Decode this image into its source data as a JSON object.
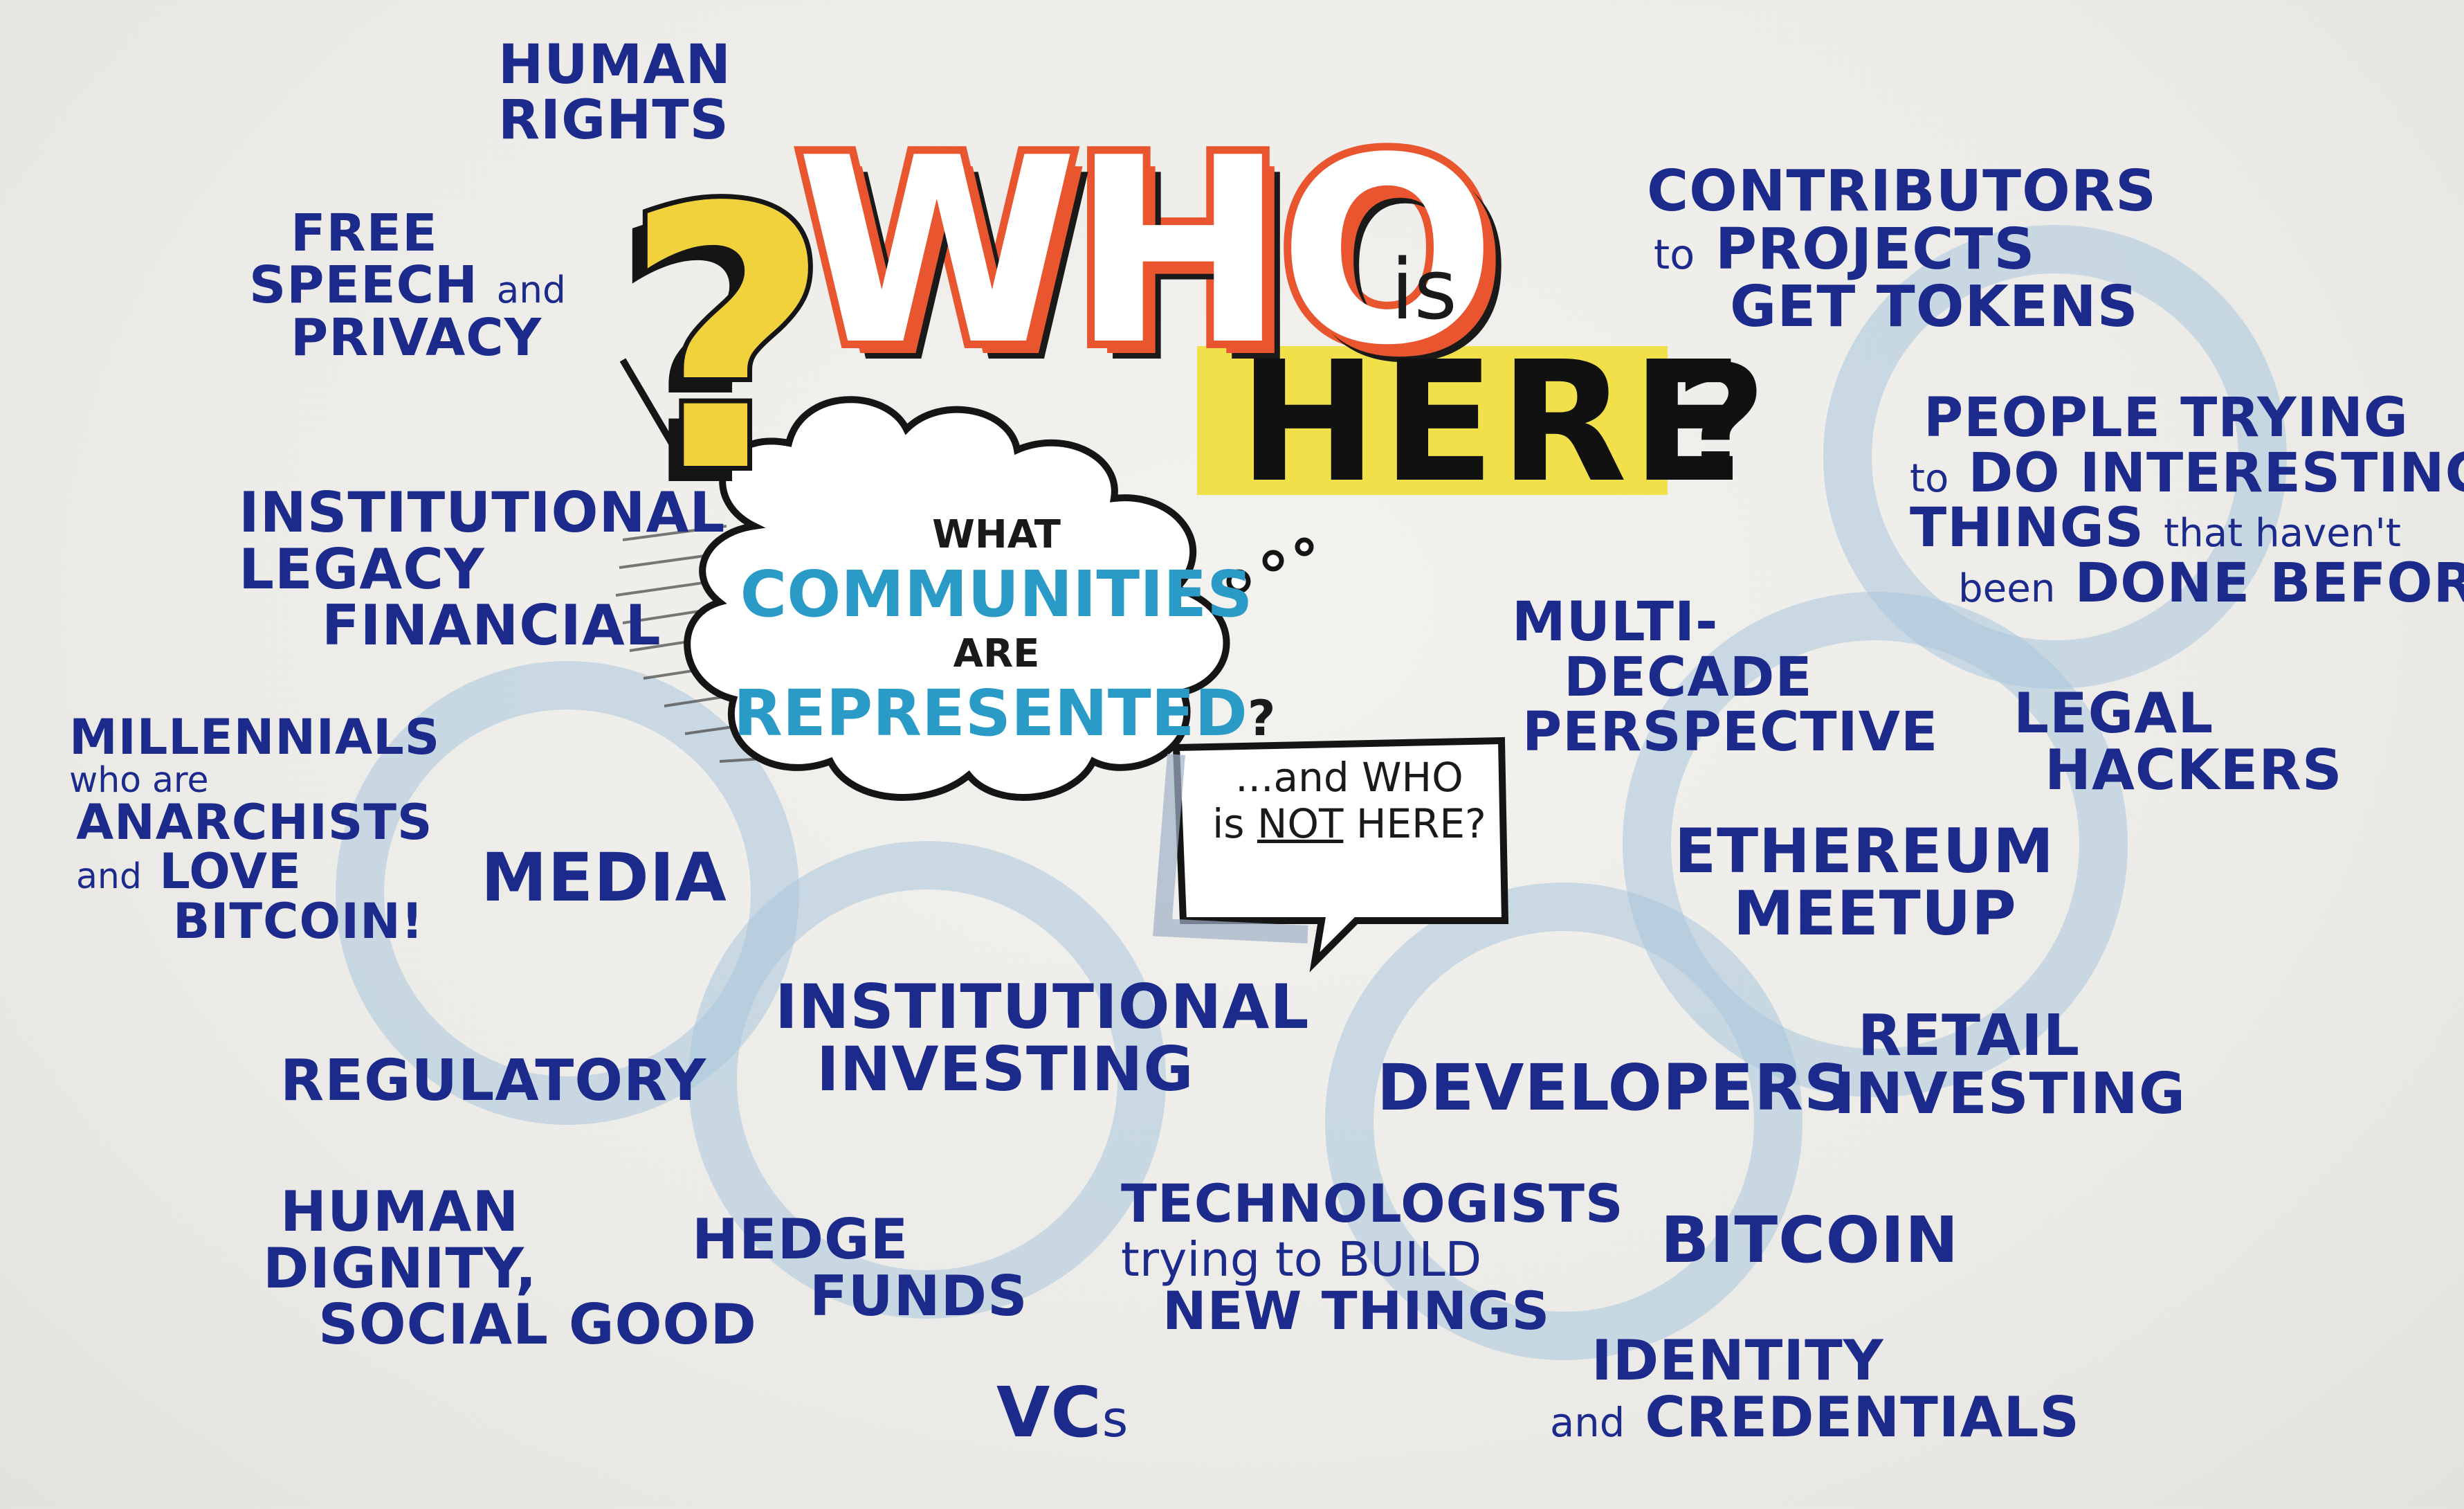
{
  "title": {
    "big_question_mark": "?",
    "who": "WHO",
    "is": "is",
    "here": "HERE",
    "question_mark": "?"
  },
  "cloud": {
    "line1": "WHAT",
    "line2": "COMMUNITIES",
    "line3": "ARE",
    "line4": "REPRESENTED",
    "dots": "...",
    "q": "?"
  },
  "bubble": {
    "line1": "...and WHO",
    "line2a": "is",
    "line2b": "NOT",
    "line2c": "HERE?"
  },
  "labels": {
    "human_rights": [
      "HUMAN",
      "RIGHTS"
    ],
    "free_speech": {
      "l1": "FREE",
      "l2a": "SPEECH",
      "l2b": "and",
      "l3": "PRIVACY"
    },
    "institutional_legacy": [
      "INSTITUTIONAL",
      "LEGACY",
      "FINANCIAL"
    ],
    "millennials": {
      "l1": "MILLENNIALS",
      "l2": "who are",
      "l3": "ANARCHISTS",
      "l4a": "and",
      "l4b": "LOVE",
      "l5": "BITCOIN!"
    },
    "media": "MEDIA",
    "regulatory": "REGULATORY",
    "human_dignity": [
      "HUMAN",
      "DIGNITY,",
      "SOCIAL GOOD"
    ],
    "hedge_funds": [
      "HEDGE",
      "FUNDS"
    ],
    "vcs": {
      "a": "VC",
      "b": "s"
    },
    "institutional_investing": [
      "INSTITUTIONAL",
      "INVESTING"
    ],
    "technologists": {
      "l1": "TECHNOLOGISTS",
      "l2": "trying to BUILD",
      "l3": "NEW THINGS"
    },
    "developers": "DEVELOPERS",
    "bitcoin": "BITCOIN",
    "identity": {
      "l1": "IDENTITY",
      "l2a": "and",
      "l2b": "CREDENTIALS"
    },
    "retail_investing": [
      "RETAIL",
      "INVESTING"
    ],
    "ethereum_meetup": [
      "ETHEREUM",
      "MEETUP"
    ],
    "multi_decade": [
      "MULTI-",
      "DECADE",
      "PERSPECTIVE"
    ],
    "legal_hackers": [
      "LEGAL",
      "HACKERS"
    ],
    "contributors": {
      "l1": "CONTRIBUTORS",
      "l2a": "to",
      "l2b": "PROJECTS",
      "l3": "GET TOKENS"
    },
    "people_trying": {
      "l1": "PEOPLE TRYING",
      "l2a": "to",
      "l2b": "DO INTERESTING",
      "l3a": "THINGS",
      "l3b": "that haven't",
      "l4a": "been",
      "l4b": "DONE BEFORE"
    }
  },
  "colors": {
    "ink_blue": "#1c2a8c",
    "who_orange": "#e8552f",
    "question_yellow": "#f2d23c",
    "here_highlight": "#f2e04a",
    "communities_teal": "#2a9bc7",
    "circle_wash": "#a9c7dc"
  }
}
